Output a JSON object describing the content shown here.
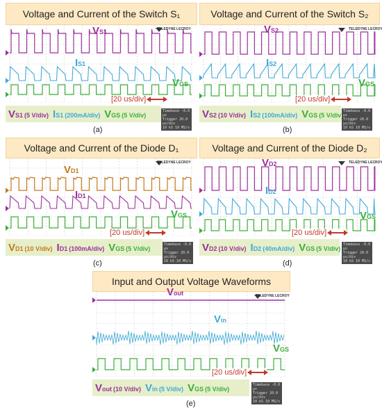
{
  "chart_data": [
    {
      "type": "line",
      "title": "Voltage and Current of the Switch  S₁",
      "caption": "(a)",
      "timebase": "[20 us/div]",
      "series": [
        {
          "name": "V_S1",
          "label": "V",
          "sub": "S1",
          "scale": "(5 V/div)",
          "color": "#9b2f9b"
        },
        {
          "name": "I_S1",
          "label": "I",
          "sub": "S1",
          "scale": "(200mA/div)",
          "color": "#3fa9d6"
        },
        {
          "name": "V_GS",
          "label": "V",
          "sub": "GS",
          "scale": "(5 V/div)",
          "color": "#3cae3c"
        }
      ]
    },
    {
      "type": "line",
      "title": "Voltage and Current of the Switch  S₂",
      "caption": "(b)",
      "timebase": "[20 us/div]",
      "series": [
        {
          "name": "V_S2",
          "label": "V",
          "sub": "S2",
          "scale": "(10 V/div)",
          "color": "#9b2f9b"
        },
        {
          "name": "I_S2",
          "label": "I",
          "sub": "S2",
          "scale": "(100mA/div)",
          "color": "#3fa9d6"
        },
        {
          "name": "V_GS",
          "label": "V",
          "sub": "GS",
          "scale": "(5 V/div)",
          "color": "#3cae3c"
        }
      ]
    },
    {
      "type": "line",
      "title": "Voltage and Current of the Diode  D₁",
      "caption": "(c)",
      "timebase": "[20 us/div]",
      "series": [
        {
          "name": "V_D1",
          "label": "V",
          "sub": "D1",
          "scale": "(10 V/div)",
          "color": "#c07a1e"
        },
        {
          "name": "I_D1",
          "label": "I",
          "sub": "D1",
          "scale": "(100mA/div)",
          "color": "#9b2f9b"
        },
        {
          "name": "V_GS",
          "label": "V",
          "sub": "GS",
          "scale": "(5 V/div)",
          "color": "#3cae3c"
        }
      ]
    },
    {
      "type": "line",
      "title": "Voltage and Current of the Diode  D₂",
      "caption": "(d)",
      "timebase": "[20 us/div]",
      "series": [
        {
          "name": "V_D2",
          "label": "V",
          "sub": "D2",
          "scale": "(10 V/div)",
          "color": "#9b2f9b"
        },
        {
          "name": "I_D2",
          "label": "I",
          "sub": "D2",
          "scale": "(40mA/div)",
          "color": "#3fa9d6"
        },
        {
          "name": "V_GS",
          "label": "V",
          "sub": "GS",
          "scale": "(5 V/div)",
          "color": "#3cae3c"
        }
      ]
    },
    {
      "type": "line",
      "title": "Input and Output Voltage Waveforms",
      "caption": "(e)",
      "timebase": "[20 us/div]",
      "series": [
        {
          "name": "V_out",
          "label": "V",
          "sub": "out",
          "scale": "(10 V/div)",
          "color": "#9b2f9b"
        },
        {
          "name": "V_in",
          "label": "V",
          "sub": "in",
          "scale": "(5 V/div)",
          "color": "#3fa9d6"
        },
        {
          "name": "V_GS",
          "label": "V",
          "sub": "GS",
          "scale": "(5 V/div)",
          "color": "#3cae3c"
        }
      ]
    }
  ],
  "brand": {
    "line1": "TELEDYNE LECROY",
    "line2": "Everywhere you look"
  },
  "timebase_box": {
    "line1": "Timebase  -0.0 µs",
    "line2": "Trigger  20.0 µs/div",
    "line3": "10 kS    10 MS/s"
  }
}
